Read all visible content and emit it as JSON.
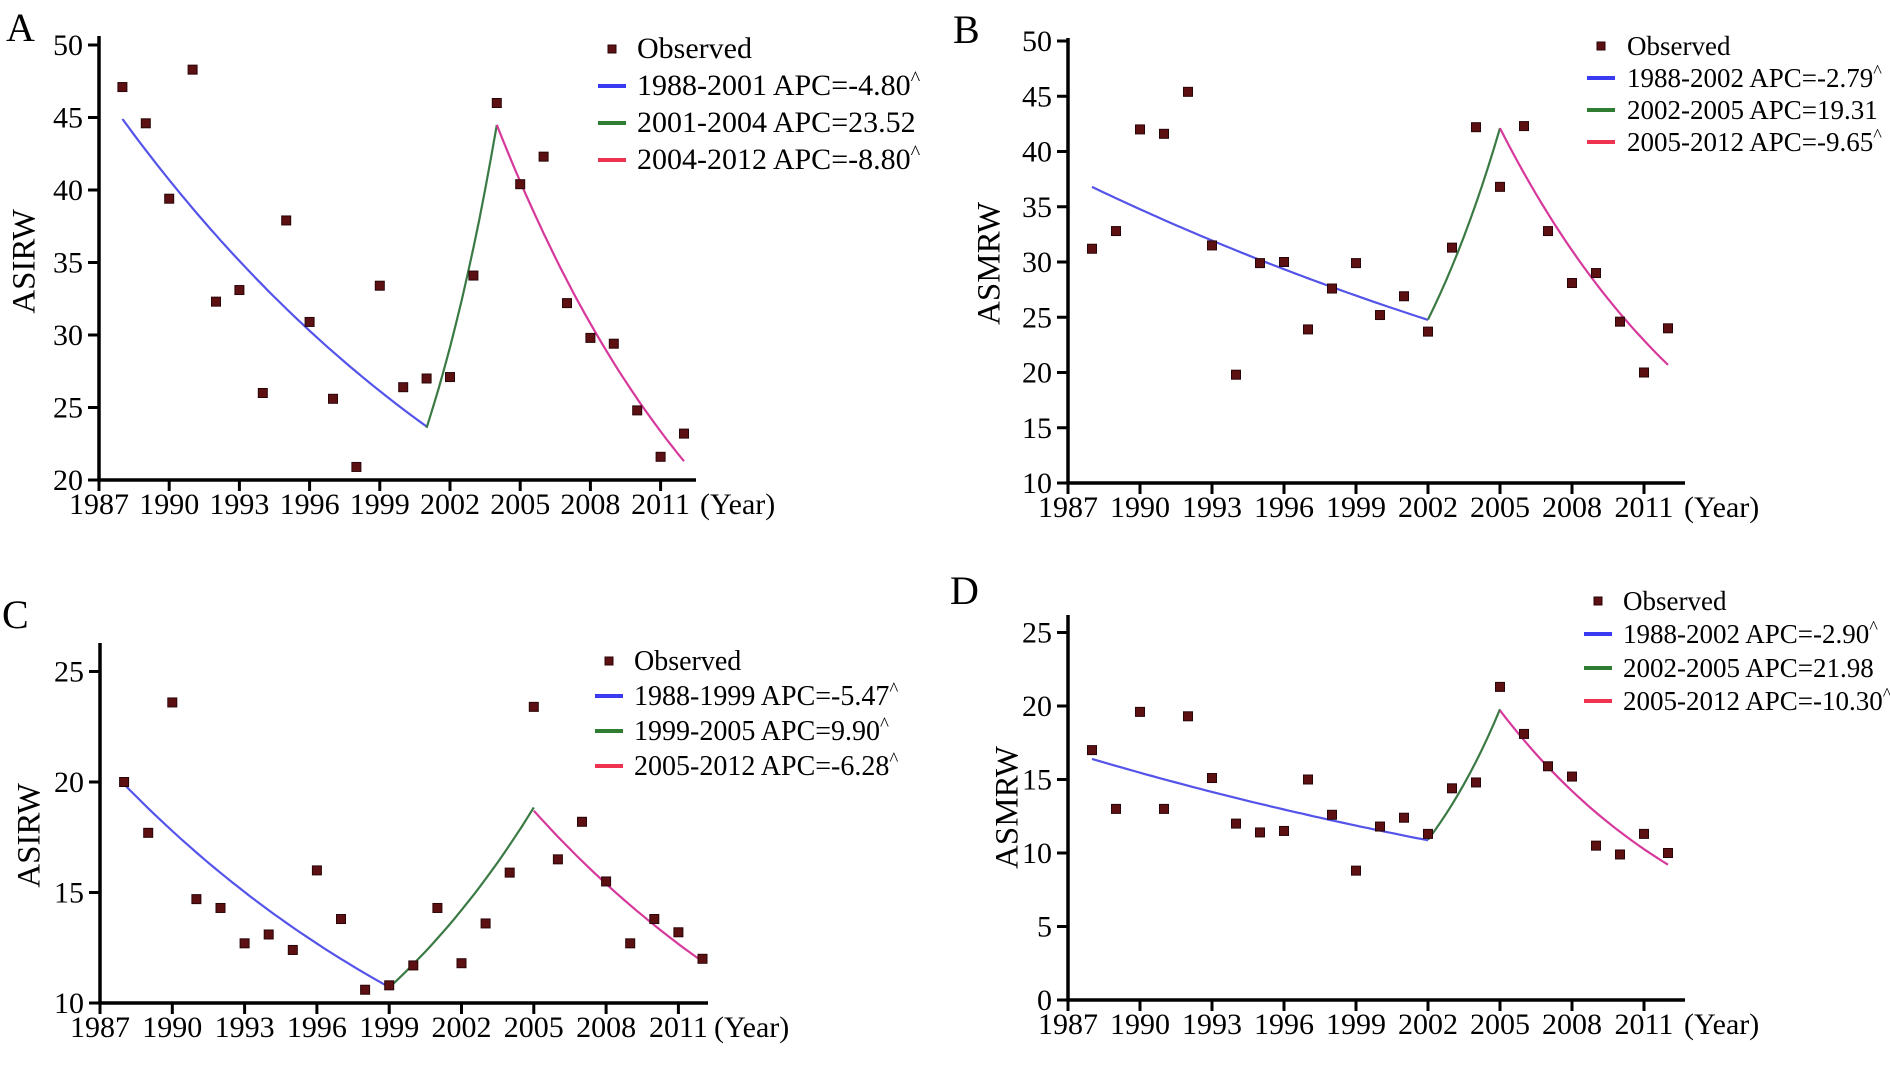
{
  "figure": {
    "background": "#ffffff",
    "axis_color": "#000000",
    "marker_color": "#5c1012",
    "marker_edge_color": "#2a0508"
  },
  "chart_data": [
    {
      "type": "scatter",
      "panel_label": "A",
      "ylabel": "ASIRW",
      "x_axis_suffix": "(Year)",
      "x_ticks": [
        1987,
        1990,
        1993,
        1996,
        1999,
        2002,
        2005,
        2008,
        2011
      ],
      "y_ticks": [
        20,
        25,
        30,
        35,
        40,
        45,
        50
      ],
      "ylim": [
        20,
        50
      ],
      "xlim": [
        1987,
        2012
      ],
      "grid": false,
      "legend_position": "top-right",
      "years": [
        1988,
        1989,
        1990,
        1991,
        1992,
        1993,
        1994,
        1995,
        1996,
        1997,
        1998,
        1999,
        2000,
        2001,
        2002,
        2003,
        2004,
        2005,
        2006,
        2007,
        2008,
        2009,
        2010,
        2011,
        2012
      ],
      "observed": [
        47.1,
        44.6,
        39.4,
        48.3,
        32.3,
        33.1,
        26.0,
        37.9,
        30.9,
        25.6,
        20.9,
        33.4,
        26.4,
        27.0,
        27.1,
        34.1,
        46.0,
        40.4,
        42.3,
        32.2,
        29.8,
        29.4,
        24.8,
        21.6,
        23.2
      ],
      "observed_label": "Observed",
      "marker_color": "#5c1012",
      "segments": [
        {
          "label": "1988-2001 APC=-4.80^",
          "significant": true,
          "from": 1988,
          "to": 2001,
          "apc": -4.8,
          "start_value": 44.9,
          "end_value": 23.7,
          "line_color": "#5454ea",
          "legend_color": "#3a3af2"
        },
        {
          "label": "2001-2004 APC=23.52",
          "significant": false,
          "from": 2001,
          "to": 2004,
          "apc": 23.52,
          "start_value": 23.6,
          "end_value": 44.5,
          "line_color": "#3a7a44",
          "legend_color": "#2e7d32"
        },
        {
          "label": "2004-2012 APC=-8.80^",
          "significant": true,
          "from": 2004,
          "to": 2012,
          "apc": -8.8,
          "start_value": 44.5,
          "end_value": 21.3,
          "line_color": "#d6399b",
          "legend_color": "#ee3350"
        }
      ]
    },
    {
      "type": "scatter",
      "panel_label": "B",
      "ylabel": "ASMRW",
      "x_axis_suffix": "(Year)",
      "x_ticks": [
        1987,
        1990,
        1993,
        1996,
        1999,
        2002,
        2005,
        2008,
        2011
      ],
      "y_ticks": [
        10,
        15,
        20,
        25,
        30,
        35,
        40,
        45,
        50
      ],
      "ylim": [
        10,
        50
      ],
      "xlim": [
        1987,
        2012
      ],
      "grid": false,
      "legend_position": "top-right",
      "years": [
        1988,
        1989,
        1990,
        1991,
        1992,
        1993,
        1994,
        1995,
        1996,
        1997,
        1998,
        1999,
        2000,
        2001,
        2002,
        2003,
        2004,
        2005,
        2006,
        2007,
        2008,
        2009,
        2010,
        2011,
        2012
      ],
      "observed": [
        31.2,
        32.8,
        42.0,
        41.6,
        45.4,
        31.5,
        19.8,
        29.9,
        30.0,
        23.9,
        27.6,
        29.9,
        25.2,
        26.9,
        23.7,
        31.3,
        42.2,
        36.8,
        42.3,
        32.8,
        28.1,
        29.0,
        24.6,
        20.0,
        24.0
      ],
      "observed_label": "Observed",
      "marker_color": "#5c1012",
      "segments": [
        {
          "label": "1988-2002 APC=-2.79^",
          "significant": true,
          "from": 1988,
          "to": 2002,
          "apc": -2.79,
          "start_value": 36.8,
          "end_value": 24.8,
          "line_color": "#5454ea",
          "legend_color": "#3a3af2"
        },
        {
          "label": "2002-2005 APC=19.31",
          "significant": false,
          "from": 2002,
          "to": 2005,
          "apc": 19.31,
          "start_value": 24.8,
          "end_value": 42.1,
          "line_color": "#3a7a44",
          "legend_color": "#2e7d32"
        },
        {
          "label": "2005-2012 APC=-9.65^",
          "significant": true,
          "from": 2005,
          "to": 2012,
          "apc": -9.65,
          "start_value": 42.1,
          "end_value": 20.7,
          "line_color": "#d6399b",
          "legend_color": "#ee3350"
        }
      ]
    },
    {
      "type": "scatter",
      "panel_label": "C",
      "ylabel": "ASIRW",
      "x_axis_suffix": "(Year)",
      "x_ticks": [
        1987,
        1990,
        1993,
        1996,
        1999,
        2002,
        2005,
        2008,
        2011
      ],
      "y_ticks": [
        10,
        15,
        20,
        25
      ],
      "ylim": [
        10,
        26.5
      ],
      "xlim": [
        1987,
        2012
      ],
      "grid": false,
      "legend_position": "right",
      "years": [
        1988,
        1989,
        1990,
        1991,
        1992,
        1993,
        1994,
        1995,
        1996,
        1997,
        1998,
        1999,
        2000,
        2001,
        2002,
        2003,
        2004,
        2005,
        2006,
        2007,
        2008,
        2009,
        2010,
        2011,
        2012
      ],
      "observed": [
        20.0,
        17.7,
        23.6,
        14.7,
        14.3,
        12.7,
        13.1,
        12.4,
        16.0,
        13.8,
        10.6,
        10.8,
        11.7,
        14.3,
        11.8,
        13.6,
        15.9,
        23.4,
        16.5,
        18.2,
        15.5,
        12.7,
        13.8,
        13.2,
        12.0
      ],
      "observed_label": "Observed",
      "marker_color": "#5c1012",
      "segments": [
        {
          "label": "1988-1999 APC=-5.47^",
          "significant": true,
          "from": 1988,
          "to": 1999,
          "apc": -5.47,
          "start_value": 19.9,
          "end_value": 10.7,
          "line_color": "#5454ea",
          "legend_color": "#3a3af2"
        },
        {
          "label": "1999-2005 APC=9.90^",
          "significant": true,
          "from": 1999,
          "to": 2005,
          "apc": 9.9,
          "start_value": 10.7,
          "end_value": 18.8,
          "line_color": "#3a7a44",
          "legend_color": "#2e7d32"
        },
        {
          "label": "2005-2012 APC=-6.28^",
          "significant": true,
          "from": 2005,
          "to": 2012,
          "apc": -6.28,
          "start_value": 18.7,
          "end_value": 11.9,
          "line_color": "#d6399b",
          "legend_color": "#ee3350"
        }
      ]
    },
    {
      "type": "scatter",
      "panel_label": "D",
      "ylabel": "ASMRW",
      "x_axis_suffix": "(Year)",
      "x_ticks": [
        1987,
        1990,
        1993,
        1996,
        1999,
        2002,
        2005,
        2008,
        2011
      ],
      "y_ticks": [
        0,
        5,
        10,
        15,
        20,
        25
      ],
      "ylim": [
        0,
        26.2
      ],
      "xlim": [
        1987,
        2012
      ],
      "grid": false,
      "legend_position": "top-right",
      "years": [
        1988,
        1989,
        1990,
        1991,
        1992,
        1993,
        1994,
        1995,
        1996,
        1997,
        1998,
        1999,
        2000,
        2001,
        2002,
        2003,
        2004,
        2005,
        2006,
        2007,
        2008,
        2009,
        2010,
        2011,
        2012
      ],
      "observed": [
        17.0,
        13.0,
        19.6,
        13.0,
        19.3,
        15.1,
        12.0,
        11.4,
        11.5,
        15.0,
        12.6,
        8.8,
        11.8,
        12.4,
        11.3,
        14.4,
        14.8,
        21.3,
        18.1,
        15.9,
        15.2,
        10.5,
        9.9,
        11.3,
        10.0
      ],
      "observed_label": "Observed",
      "marker_color": "#5c1012",
      "segments": [
        {
          "label": "1988-2002 APC=-2.90^",
          "significant": true,
          "from": 1988,
          "to": 2002,
          "apc": -2.9,
          "start_value": 16.4,
          "end_value": 10.9,
          "line_color": "#5454ea",
          "legend_color": "#3a3af2"
        },
        {
          "label": "2002-2005 APC=21.98",
          "significant": false,
          "from": 2002,
          "to": 2005,
          "apc": 21.98,
          "start_value": 10.9,
          "end_value": 19.8,
          "line_color": "#3a7a44",
          "legend_color": "#2e7d32"
        },
        {
          "label": "2005-2012 APC=-10.30^",
          "significant": true,
          "from": 2005,
          "to": 2012,
          "apc": -10.3,
          "start_value": 19.7,
          "end_value": 9.2,
          "line_color": "#d6399b",
          "legend_color": "#ee3350"
        }
      ]
    }
  ]
}
